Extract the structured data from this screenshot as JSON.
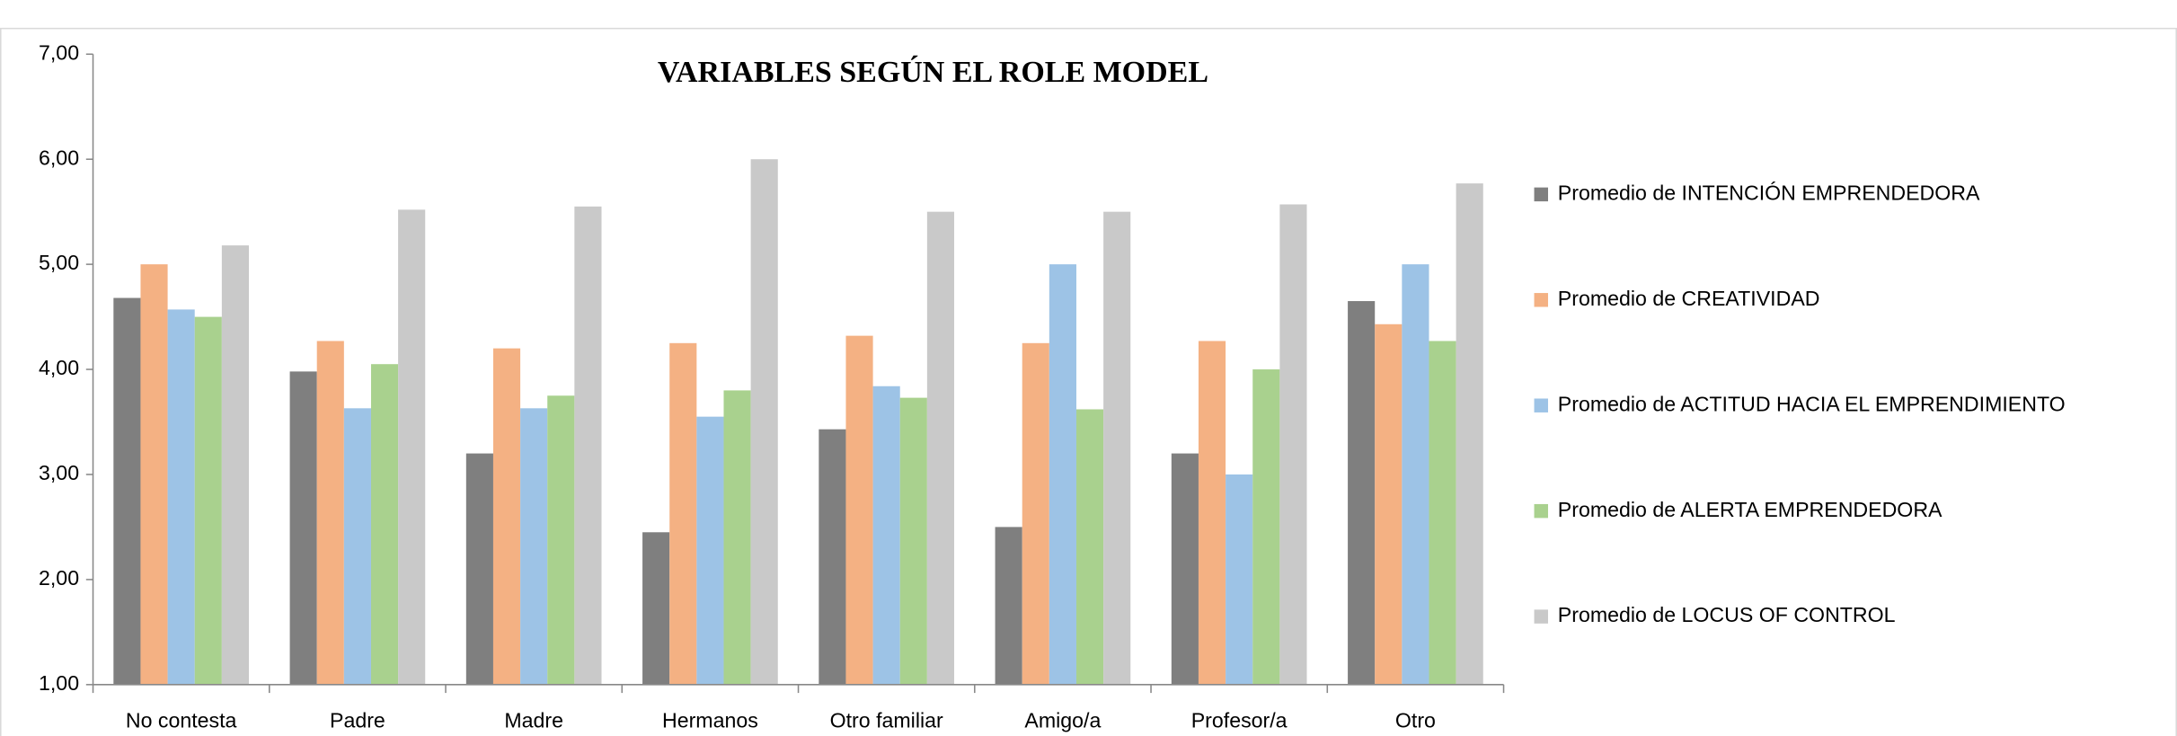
{
  "chart_data": {
    "type": "bar",
    "title": "VARIABLES SEGÚN EL ROLE MODEL",
    "categories": [
      "No contesta",
      "Padre",
      "Madre",
      "Hermanos",
      "Otro familiar",
      "Amigo/a",
      "Profesor/a",
      "Otro"
    ],
    "series": [
      {
        "name": "Promedio de INTENCIÓN EMPRENDEDORA",
        "color": "#7f7f7f",
        "values": [
          4.68,
          3.98,
          3.2,
          2.45,
          3.43,
          2.5,
          3.2,
          4.65
        ]
      },
      {
        "name": "Promedio de CREATIVIDAD",
        "color": "#f4b183",
        "values": [
          5.0,
          4.27,
          4.2,
          4.25,
          4.32,
          4.25,
          4.27,
          4.43
        ]
      },
      {
        "name": "Promedio de ACTITUD HACIA EL EMPRENDIMIENTO",
        "color": "#9dc3e6",
        "values": [
          4.57,
          3.63,
          3.63,
          3.55,
          3.84,
          5.0,
          3.0,
          5.0
        ]
      },
      {
        "name": "Promedio de ALERTA EMPRENDEDORA",
        "color": "#a9d18e",
        "values": [
          4.5,
          4.05,
          3.75,
          3.8,
          3.73,
          3.62,
          4.0,
          4.27
        ]
      },
      {
        "name": "Promedio de LOCUS OF CONTROL",
        "color": "#c9c9c9",
        "values": [
          5.18,
          5.52,
          5.55,
          6.0,
          5.5,
          5.5,
          5.57,
          5.77
        ]
      }
    ],
    "ylim": [
      1,
      7
    ],
    "yticks": [
      {
        "value": 1,
        "label": "1,00"
      },
      {
        "value": 2,
        "label": "2,00"
      },
      {
        "value": 3,
        "label": "3,00"
      },
      {
        "value": 4,
        "label": "4,00"
      },
      {
        "value": 5,
        "label": "5,00"
      },
      {
        "value": 6,
        "label": "6,00"
      },
      {
        "value": 7,
        "label": "7,00"
      }
    ],
    "legend": "right"
  }
}
